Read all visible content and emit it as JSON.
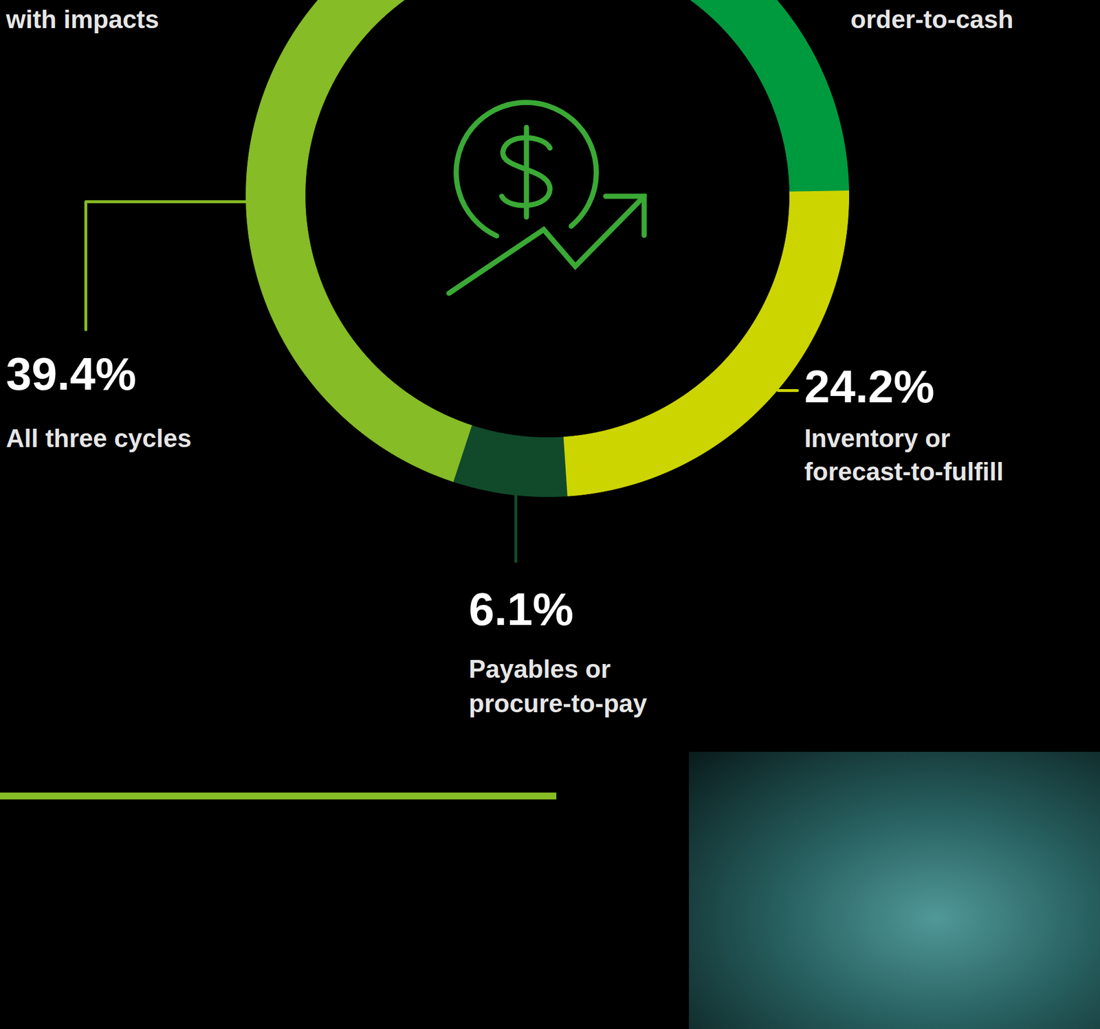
{
  "chart_data": {
    "type": "donut",
    "title": "with impacts",
    "categories": [
      "order-to-cash",
      "Inventory or forecast-to-fulfill",
      "Payables or procure-to-pay",
      "All three cycles"
    ],
    "values": [
      30.3,
      24.2,
      6.1,
      39.4
    ],
    "value_labels": [
      null,
      "24.2%",
      "6.1%",
      "39.4%"
    ],
    "colors": [
      "#009a3e",
      "#cdd500",
      "#114a2a",
      "#86bc25"
    ],
    "data_labels": true
  }
}
